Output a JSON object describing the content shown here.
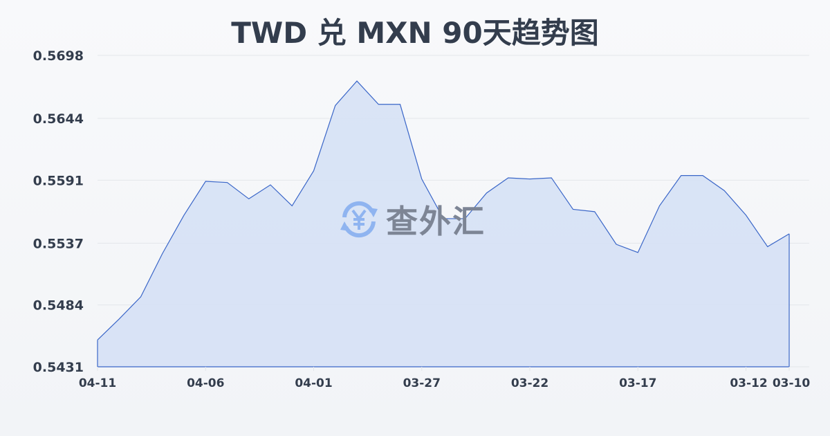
{
  "chart_data": {
    "type": "area",
    "title": "TWD 兑 MXN 90天趋势图",
    "xlabel": "",
    "ylabel": "",
    "ylim": [
      0.5431,
      0.5698
    ],
    "yticks": [
      "0.5698",
      "0.5644",
      "0.5591",
      "0.5537",
      "0.5484",
      "0.5431"
    ],
    "xticks": [
      "04-11",
      "04-06",
      "04-01",
      "03-27",
      "03-22",
      "03-17",
      "03-12",
      "03-10"
    ],
    "x": [
      "04-11",
      "04-10",
      "04-09",
      "04-08",
      "04-07",
      "04-06",
      "04-05",
      "04-04",
      "04-03",
      "04-02",
      "04-01",
      "03-31",
      "03-30",
      "03-29",
      "03-28",
      "03-27",
      "03-26",
      "03-25",
      "03-24",
      "03-23",
      "03-22",
      "03-21",
      "03-20",
      "03-19",
      "03-18",
      "03-17",
      "03-16",
      "03-15",
      "03-14",
      "03-13",
      "03-12",
      "03-11",
      "03-10"
    ],
    "values": [
      0.5454,
      0.5472,
      0.5491,
      0.5528,
      0.5561,
      0.559,
      0.5589,
      0.5575,
      0.5587,
      0.5569,
      0.5599,
      0.5655,
      0.5676,
      0.5656,
      0.5656,
      0.5592,
      0.5558,
      0.5558,
      0.558,
      0.5593,
      0.5592,
      0.5593,
      0.5566,
      0.5564,
      0.5536,
      0.5529,
      0.5569,
      0.5595,
      0.5595,
      0.5582,
      0.5561,
      0.5534,
      0.5545
    ],
    "grid": true,
    "colors": {
      "line": "#3a66c8",
      "fill": "#d6e1f5",
      "grid": "#e3e6ea",
      "text": "#333d4d"
    }
  },
  "watermark": {
    "text": "查外汇",
    "icon": "yen-exchange-icon",
    "icon_color": "#8fb4f0"
  }
}
